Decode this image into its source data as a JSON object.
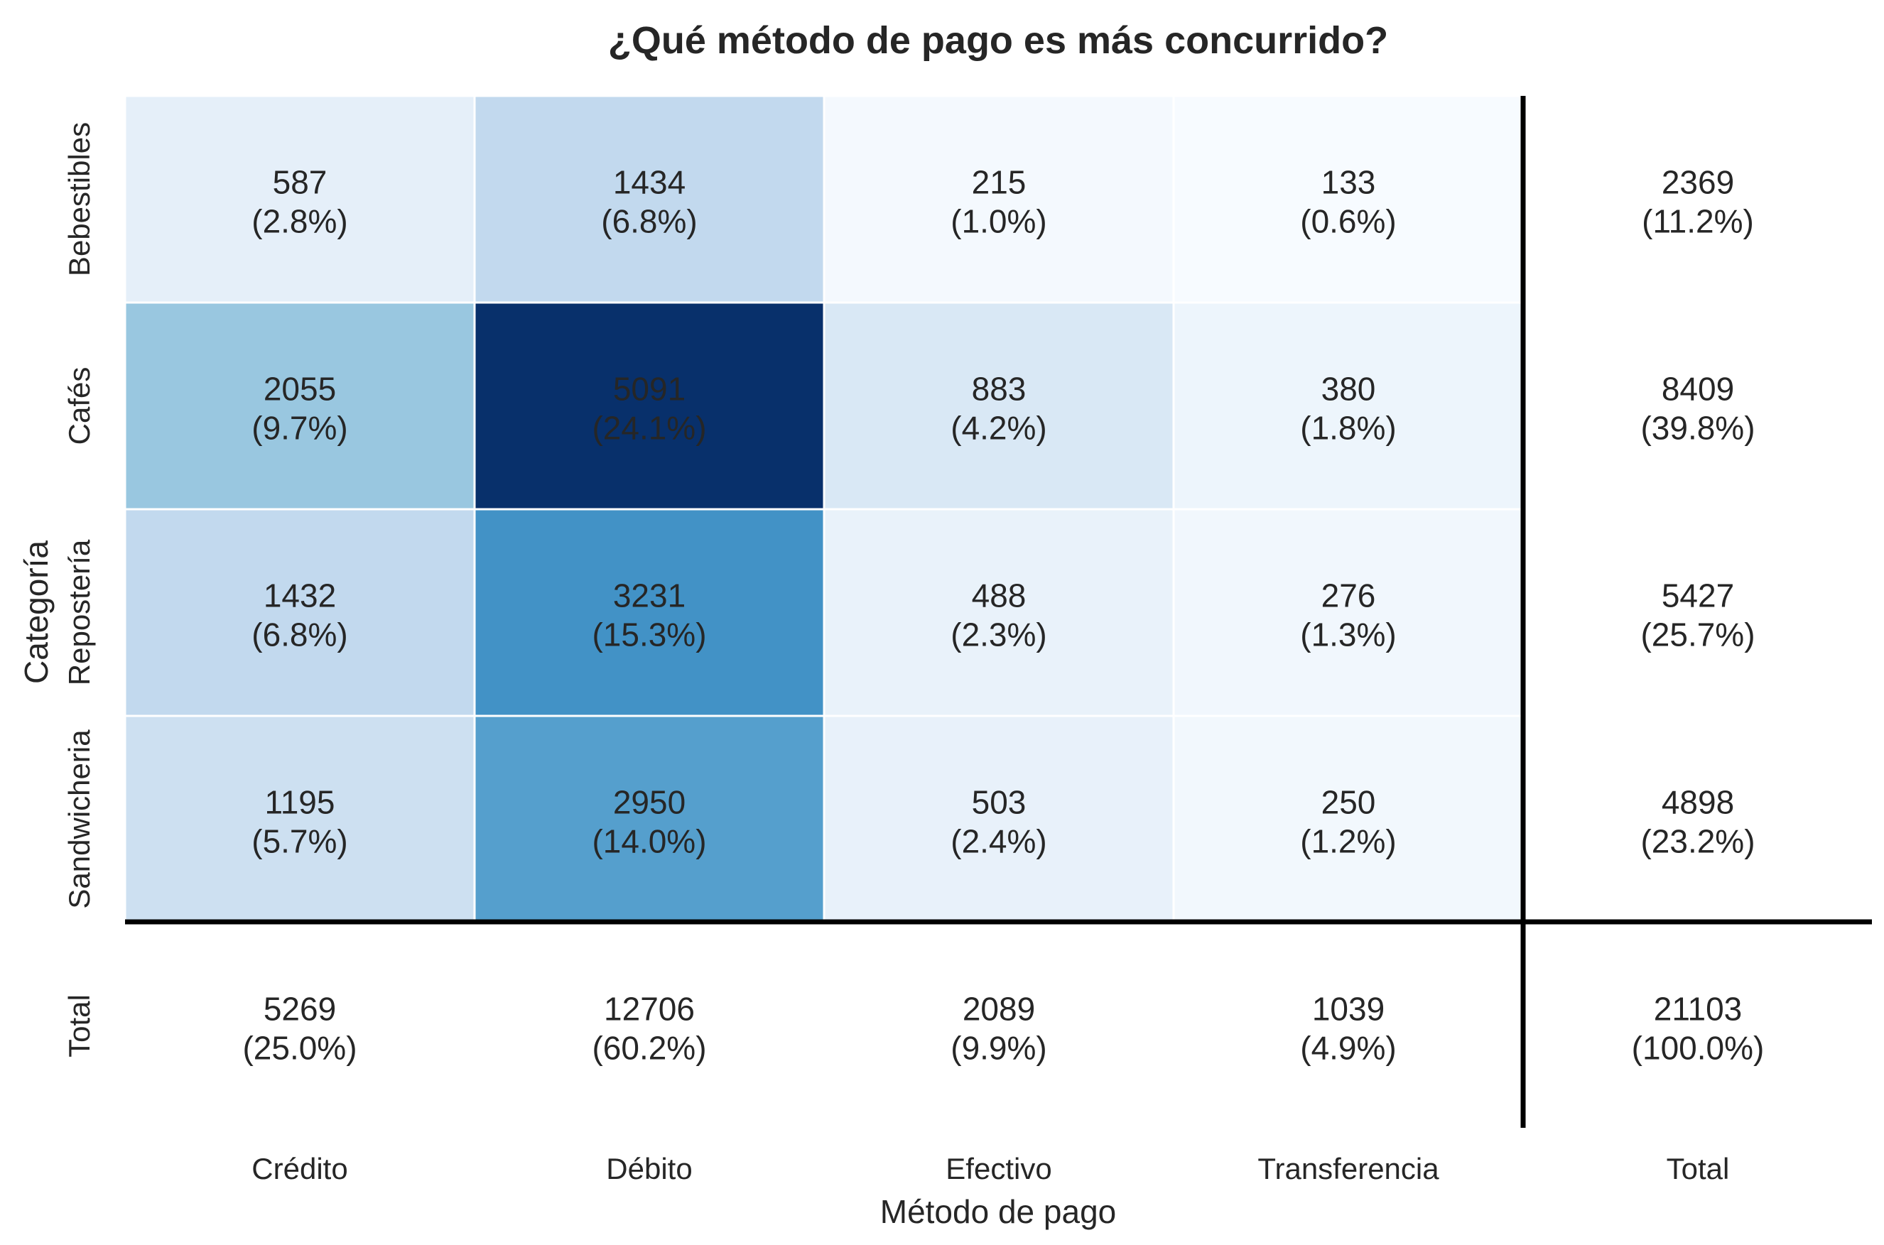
{
  "chart_data": {
    "type": "heatmap",
    "title": "¿Qué método de pago es más concurrido?",
    "xlabel": "Método de pago",
    "ylabel": "Categoría",
    "colormap": "Blues",
    "columns": [
      "Crédito",
      "Débito",
      "Efectivo",
      "Transferencia"
    ],
    "rows": [
      "Bebestibles",
      "Cafés",
      "Repostería",
      "Sandwicheria"
    ],
    "values": [
      [
        587,
        1434,
        215,
        133
      ],
      [
        2055,
        5091,
        883,
        380
      ],
      [
        1432,
        3231,
        488,
        276
      ],
      [
        1195,
        2950,
        503,
        250
      ]
    ],
    "percents": [
      [
        "(2.8%)",
        "(6.8%)",
        "(1.0%)",
        "(0.6%)"
      ],
      [
        "(9.7%)",
        "(24.1%)",
        "(4.2%)",
        "(1.8%)"
      ],
      [
        "(6.8%)",
        "(15.3%)",
        "(2.3%)",
        "(1.3%)"
      ],
      [
        "(5.7%)",
        "(14.0%)",
        "(2.4%)",
        "(1.2%)"
      ]
    ],
    "total_label": "Total",
    "row_totals": [
      2369,
      8409,
      5427,
      4898
    ],
    "row_total_percents": [
      "(11.2%)",
      "(39.8%)",
      "(25.7%)",
      "(23.2%)"
    ],
    "column_totals": [
      5269,
      12706,
      2089,
      1039
    ],
    "column_total_percents": [
      "(25.0%)",
      "(60.2%)",
      "(9.9%)",
      "(4.9%)"
    ],
    "grand_total": 21103,
    "grand_total_percent": "(100.0%)"
  }
}
